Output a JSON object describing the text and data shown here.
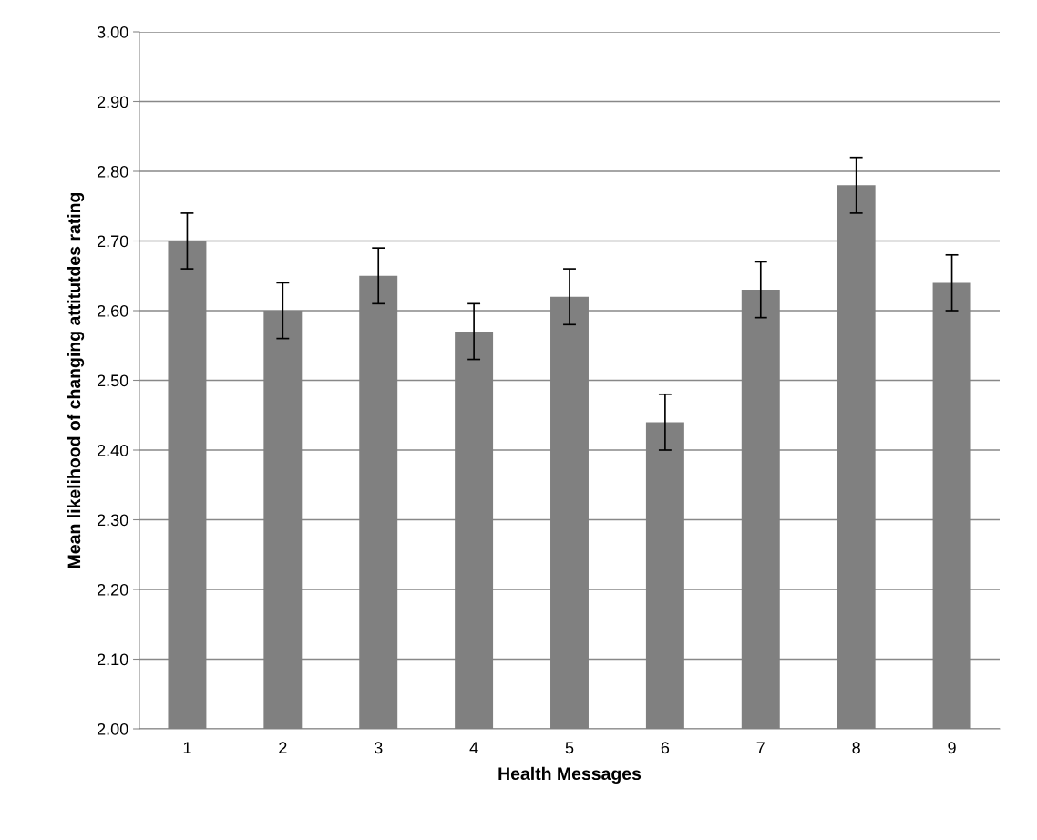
{
  "chart_data": {
    "type": "bar",
    "xlabel": "Health Messages",
    "ylabel": "Mean likelihood of changing attitutdes rating",
    "categories": [
      "1",
      "2",
      "3",
      "4",
      "5",
      "6",
      "7",
      "8",
      "9"
    ],
    "values": [
      2.7,
      2.6,
      2.65,
      2.57,
      2.62,
      2.44,
      2.63,
      2.78,
      2.64
    ],
    "errors": [
      0.04,
      0.04,
      0.04,
      0.04,
      0.04,
      0.04,
      0.04,
      0.04,
      0.04
    ],
    "color": "#808080",
    "ylim": [
      2.0,
      3.0
    ],
    "yticks": [
      {
        "value": 2.0,
        "label": "2.00"
      },
      {
        "value": 2.1,
        "label": "2.10"
      },
      {
        "value": 2.2,
        "label": "2.20"
      },
      {
        "value": 2.3,
        "label": "2.30"
      },
      {
        "value": 2.4,
        "label": "2.40"
      },
      {
        "value": 2.5,
        "label": "2.50"
      },
      {
        "value": 2.6,
        "label": "2.60"
      },
      {
        "value": 2.7,
        "label": "2.70"
      },
      {
        "value": 2.8,
        "label": "2.80"
      },
      {
        "value": 2.9,
        "label": "2.90"
      },
      {
        "value": 3.0,
        "label": "3.00"
      }
    ],
    "grid": "y"
  }
}
